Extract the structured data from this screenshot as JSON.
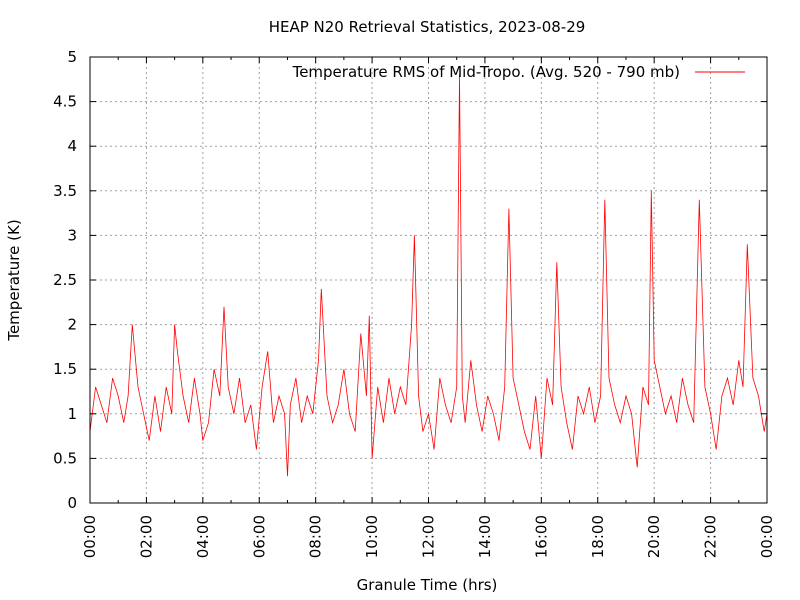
{
  "chart_data": {
    "type": "line",
    "title": "HEAP N20 Retrieval Statistics, 2023-08-29",
    "xlabel": "Granule Time (hrs)",
    "ylabel": "Temperature (K)",
    "xlim": [
      0,
      24
    ],
    "ylim": [
      0,
      5
    ],
    "x_ticks": [
      "00:00",
      "02:00",
      "04:00",
      "06:00",
      "08:00",
      "10:00",
      "12:00",
      "14:00",
      "16:00",
      "18:00",
      "20:00",
      "22:00",
      "00:00"
    ],
    "y_ticks": [
      "0",
      "0.5",
      "1",
      "1.5",
      "2",
      "2.5",
      "3",
      "3.5",
      "4",
      "4.5",
      "5"
    ],
    "grid": true,
    "legend_position": "top-right",
    "series": [
      {
        "name": "Temperature RMS of Mid-Tropo. (Avg. 520 - 790 mb)",
        "color": "#ff0000",
        "x": [
          0.0,
          0.2,
          0.4,
          0.6,
          0.8,
          1.0,
          1.2,
          1.35,
          1.5,
          1.7,
          1.9,
          2.1,
          2.3,
          2.5,
          2.7,
          2.9,
          3.0,
          3.1,
          3.3,
          3.5,
          3.7,
          3.9,
          4.0,
          4.2,
          4.4,
          4.6,
          4.75,
          4.9,
          5.1,
          5.3,
          5.5,
          5.7,
          5.9,
          6.1,
          6.3,
          6.5,
          6.7,
          6.9,
          7.0,
          7.1,
          7.3,
          7.5,
          7.7,
          7.9,
          8.1,
          8.2,
          8.4,
          8.6,
          8.8,
          9.0,
          9.2,
          9.4,
          9.6,
          9.8,
          9.9,
          10.0,
          10.2,
          10.4,
          10.6,
          10.8,
          11.0,
          11.2,
          11.4,
          11.5,
          11.65,
          11.8,
          12.0,
          12.2,
          12.4,
          12.6,
          12.8,
          13.0,
          13.1,
          13.2,
          13.3,
          13.5,
          13.7,
          13.9,
          14.1,
          14.3,
          14.5,
          14.7,
          14.85,
          15.0,
          15.2,
          15.4,
          15.6,
          15.8,
          16.0,
          16.2,
          16.4,
          16.55,
          16.7,
          16.9,
          17.1,
          17.3,
          17.5,
          17.7,
          17.9,
          18.1,
          18.25,
          18.4,
          18.6,
          18.8,
          19.0,
          19.2,
          19.4,
          19.6,
          19.8,
          19.9,
          20.0,
          20.2,
          20.4,
          20.6,
          20.8,
          21.0,
          21.2,
          21.4,
          21.6,
          21.8,
          22.0,
          22.2,
          22.4,
          22.6,
          22.8,
          23.0,
          23.15,
          23.3,
          23.5,
          23.7,
          23.9,
          24.0
        ],
        "y": [
          0.8,
          1.3,
          1.1,
          0.9,
          1.4,
          1.2,
          0.9,
          1.2,
          2.0,
          1.3,
          1.0,
          0.7,
          1.2,
          0.8,
          1.3,
          1.0,
          2.0,
          1.7,
          1.2,
          0.9,
          1.4,
          1.0,
          0.7,
          0.9,
          1.5,
          1.2,
          2.2,
          1.3,
          1.0,
          1.4,
          0.9,
          1.1,
          0.6,
          1.3,
          1.7,
          0.9,
          1.2,
          1.0,
          0.3,
          1.1,
          1.4,
          0.9,
          1.2,
          1.0,
          1.6,
          2.4,
          1.2,
          0.9,
          1.1,
          1.5,
          1.0,
          0.8,
          1.9,
          1.2,
          2.1,
          0.5,
          1.3,
          0.9,
          1.4,
          1.0,
          1.3,
          1.1,
          2.0,
          3.0,
          1.2,
          0.8,
          1.0,
          0.6,
          1.4,
          1.1,
          0.9,
          1.3,
          4.8,
          1.2,
          0.9,
          1.6,
          1.1,
          0.8,
          1.2,
          1.0,
          0.7,
          1.3,
          3.3,
          1.4,
          1.1,
          0.8,
          0.6,
          1.2,
          0.5,
          1.4,
          1.1,
          2.7,
          1.3,
          0.9,
          0.6,
          1.2,
          1.0,
          1.3,
          0.9,
          1.2,
          3.4,
          1.4,
          1.1,
          0.9,
          1.2,
          1.0,
          0.4,
          1.3,
          1.1,
          3.5,
          1.6,
          1.3,
          1.0,
          1.2,
          0.9,
          1.4,
          1.1,
          0.9,
          3.4,
          1.3,
          1.0,
          0.6,
          1.2,
          1.4,
          1.1,
          1.6,
          1.3,
          2.9,
          1.4,
          1.2,
          0.8,
          1.0
        ]
      }
    ]
  }
}
